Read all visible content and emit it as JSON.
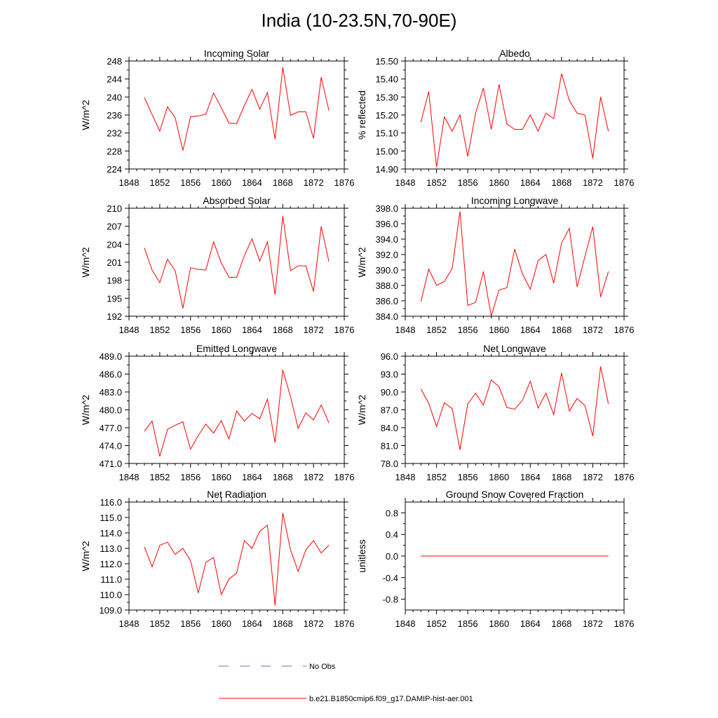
{
  "title": "India (10-23.5N,70-90E)",
  "series_color": "#ff0000",
  "obs_color": "#6b6bc8",
  "legend": {
    "obs_label": "No Obs",
    "model_label": "b.e21.B1850cmip6.f09_g17.DAMIP-hist-aer.001"
  },
  "chart_data": [
    {
      "type": "line",
      "title": "Incoming Solar",
      "ylabel": "W/m^2",
      "xlim": [
        1848,
        1876
      ],
      "xticks": [
        1848,
        1852,
        1856,
        1860,
        1864,
        1868,
        1872,
        1876
      ],
      "ylim": [
        224,
        248
      ],
      "yticks": [
        "224",
        "228",
        "232",
        "236",
        "240",
        "244",
        "248"
      ],
      "x": [
        1850,
        1851,
        1852,
        1853,
        1854,
        1855,
        1856,
        1857,
        1858,
        1859,
        1860,
        1861,
        1862,
        1863,
        1864,
        1865,
        1866,
        1867,
        1868,
        1869,
        1870,
        1871,
        1872,
        1873,
        1874
      ],
      "y": [
        239.9,
        236.1,
        232.4,
        237.8,
        235.4,
        228.1,
        235.6,
        235.8,
        236.2,
        240.9,
        237.6,
        234.2,
        234.1,
        238.1,
        241.7,
        237.3,
        241.0,
        230.6,
        246.6,
        235.9,
        236.7,
        236.7,
        230.8,
        244.4,
        237.0
      ]
    },
    {
      "type": "line",
      "title": "Albedo",
      "ylabel": "% reflected",
      "xlim": [
        1848,
        1876
      ],
      "xticks": [
        1848,
        1852,
        1856,
        1860,
        1864,
        1868,
        1872,
        1876
      ],
      "ylim": [
        14.9,
        15.5
      ],
      "yticks": [
        "14.90",
        "15.00",
        "15.10",
        "15.20",
        "15.30",
        "15.40",
        "15.50"
      ],
      "x": [
        1850,
        1851,
        1852,
        1853,
        1854,
        1855,
        1856,
        1857,
        1858,
        1859,
        1860,
        1861,
        1862,
        1863,
        1864,
        1865,
        1866,
        1867,
        1868,
        1869,
        1870,
        1871,
        1872,
        1873,
        1874
      ],
      "y": [
        15.16,
        15.33,
        14.91,
        15.19,
        15.11,
        15.2,
        14.97,
        15.21,
        15.35,
        15.12,
        15.37,
        15.15,
        15.12,
        15.12,
        15.2,
        15.11,
        15.21,
        15.18,
        15.43,
        15.28,
        15.21,
        15.2,
        14.96,
        15.3,
        15.11
      ]
    },
    {
      "type": "line",
      "title": "Absorbed Solar",
      "ylabel": "W/m^2",
      "xlim": [
        1848,
        1876
      ],
      "xticks": [
        1848,
        1852,
        1856,
        1860,
        1864,
        1868,
        1872,
        1876
      ],
      "ylim": [
        192,
        210
      ],
      "yticks": [
        "192",
        "195",
        "198",
        "201",
        "204",
        "207",
        "210"
      ],
      "x": [
        1850,
        1851,
        1852,
        1853,
        1854,
        1855,
        1856,
        1857,
        1858,
        1859,
        1860,
        1861,
        1862,
        1863,
        1864,
        1865,
        1866,
        1867,
        1868,
        1869,
        1870,
        1871,
        1872,
        1873,
        1874
      ],
      "y": [
        203.4,
        199.7,
        197.6,
        201.5,
        199.6,
        193.3,
        200.1,
        199.8,
        199.7,
        204.4,
        200.9,
        198.5,
        198.5,
        202.1,
        204.9,
        201.2,
        204.4,
        195.6,
        208.7,
        199.6,
        200.4,
        200.4,
        196.1,
        207.0,
        201.1
      ]
    },
    {
      "type": "line",
      "title": "Incoming Longwave",
      "ylabel": "W/m^2",
      "xlim": [
        1848,
        1876
      ],
      "xticks": [
        1848,
        1852,
        1856,
        1860,
        1864,
        1868,
        1872,
        1876
      ],
      "ylim": [
        384,
        398
      ],
      "yticks": [
        "384.0",
        "386.0",
        "388.0",
        "390.0",
        "392.0",
        "394.0",
        "396.0",
        "398.0"
      ],
      "x": [
        1850,
        1851,
        1852,
        1853,
        1854,
        1855,
        1856,
        1857,
        1858,
        1859,
        1860,
        1861,
        1862,
        1863,
        1864,
        1865,
        1866,
        1867,
        1868,
        1869,
        1870,
        1871,
        1872,
        1873,
        1874
      ],
      "y": [
        385.9,
        390.1,
        388.0,
        388.5,
        390.2,
        397.6,
        385.4,
        385.8,
        389.8,
        384.0,
        387.4,
        387.7,
        392.7,
        389.5,
        387.5,
        391.2,
        392.0,
        388.3,
        393.5,
        395.4,
        387.8,
        391.8,
        395.6,
        386.5,
        389.8
      ]
    },
    {
      "type": "line",
      "title": "Emitted Longwave",
      "ylabel": "W/m^2",
      "xlim": [
        1848,
        1876
      ],
      "xticks": [
        1848,
        1852,
        1856,
        1860,
        1864,
        1868,
        1872,
        1876
      ],
      "ylim": [
        471,
        489
      ],
      "yticks": [
        "471.0",
        "474.0",
        "477.0",
        "480.0",
        "483.0",
        "486.0",
        "489.0"
      ],
      "x": [
        1850,
        1851,
        1852,
        1853,
        1854,
        1855,
        1856,
        1857,
        1858,
        1859,
        1860,
        1861,
        1862,
        1863,
        1864,
        1865,
        1866,
        1867,
        1868,
        1869,
        1870,
        1871,
        1872,
        1873,
        1874
      ],
      "y": [
        476.4,
        478.1,
        472.2,
        476.7,
        477.4,
        478.0,
        473.4,
        475.7,
        477.6,
        476.1,
        478.2,
        475.1,
        479.8,
        478.1,
        479.4,
        478.5,
        481.8,
        474.5,
        486.7,
        482.2,
        476.9,
        479.5,
        478.3,
        480.8,
        477.8
      ]
    },
    {
      "type": "line",
      "title": "Net Longwave",
      "ylabel": "W/m^2",
      "xlim": [
        1848,
        1876
      ],
      "xticks": [
        1848,
        1852,
        1856,
        1860,
        1864,
        1868,
        1872,
        1876
      ],
      "ylim": [
        78,
        96
      ],
      "yticks": [
        "78.0",
        "81.0",
        "84.0",
        "87.0",
        "90.0",
        "93.0",
        "96.0"
      ],
      "x": [
        1850,
        1851,
        1852,
        1853,
        1854,
        1855,
        1856,
        1857,
        1858,
        1859,
        1860,
        1861,
        1862,
        1863,
        1864,
        1865,
        1866,
        1867,
        1868,
        1869,
        1870,
        1871,
        1872,
        1873,
        1874
      ],
      "y": [
        90.5,
        88.1,
        84.2,
        88.2,
        87.2,
        80.3,
        88.0,
        89.8,
        87.8,
        92.0,
        90.9,
        87.4,
        87.1,
        88.6,
        91.8,
        87.3,
        89.8,
        86.2,
        93.2,
        86.8,
        88.9,
        87.7,
        82.6,
        94.3,
        88.0
      ]
    },
    {
      "type": "line",
      "title": "Net Radiation",
      "ylabel": "W/m^2",
      "xlim": [
        1848,
        1876
      ],
      "xticks": [
        1848,
        1852,
        1856,
        1860,
        1864,
        1868,
        1872,
        1876
      ],
      "ylim": [
        109,
        116
      ],
      "yticks": [
        "109.0",
        "110.0",
        "111.0",
        "112.0",
        "113.0",
        "114.0",
        "115.0",
        "116.0"
      ],
      "x": [
        1850,
        1851,
        1852,
        1853,
        1854,
        1855,
        1856,
        1857,
        1858,
        1859,
        1860,
        1861,
        1862,
        1863,
        1864,
        1865,
        1866,
        1867,
        1868,
        1869,
        1870,
        1871,
        1872,
        1873,
        1874
      ],
      "y": [
        113.1,
        111.8,
        113.2,
        113.4,
        112.6,
        113.0,
        112.2,
        110.1,
        112.1,
        112.4,
        110.0,
        111.0,
        111.4,
        113.5,
        113.0,
        114.1,
        114.5,
        109.3,
        115.3,
        112.9,
        111.5,
        112.9,
        113.5,
        112.7,
        113.2
      ]
    },
    {
      "type": "line",
      "title": "Ground Snow Covered Fraction",
      "ylabel": "unitless",
      "xlim": [
        1848,
        1876
      ],
      "xticks": [
        1848,
        1852,
        1856,
        1860,
        1864,
        1868,
        1872,
        1876
      ],
      "ylim": [
        -1.0,
        1.0
      ],
      "yticks": [
        "-0.8",
        "-0.4",
        "0.0",
        "0.4",
        "0.8"
      ],
      "ytick_values": [
        -0.8,
        -0.4,
        0.0,
        0.4,
        0.8
      ],
      "x": [
        1850,
        1874
      ],
      "y": [
        0.0,
        0.0
      ]
    }
  ]
}
